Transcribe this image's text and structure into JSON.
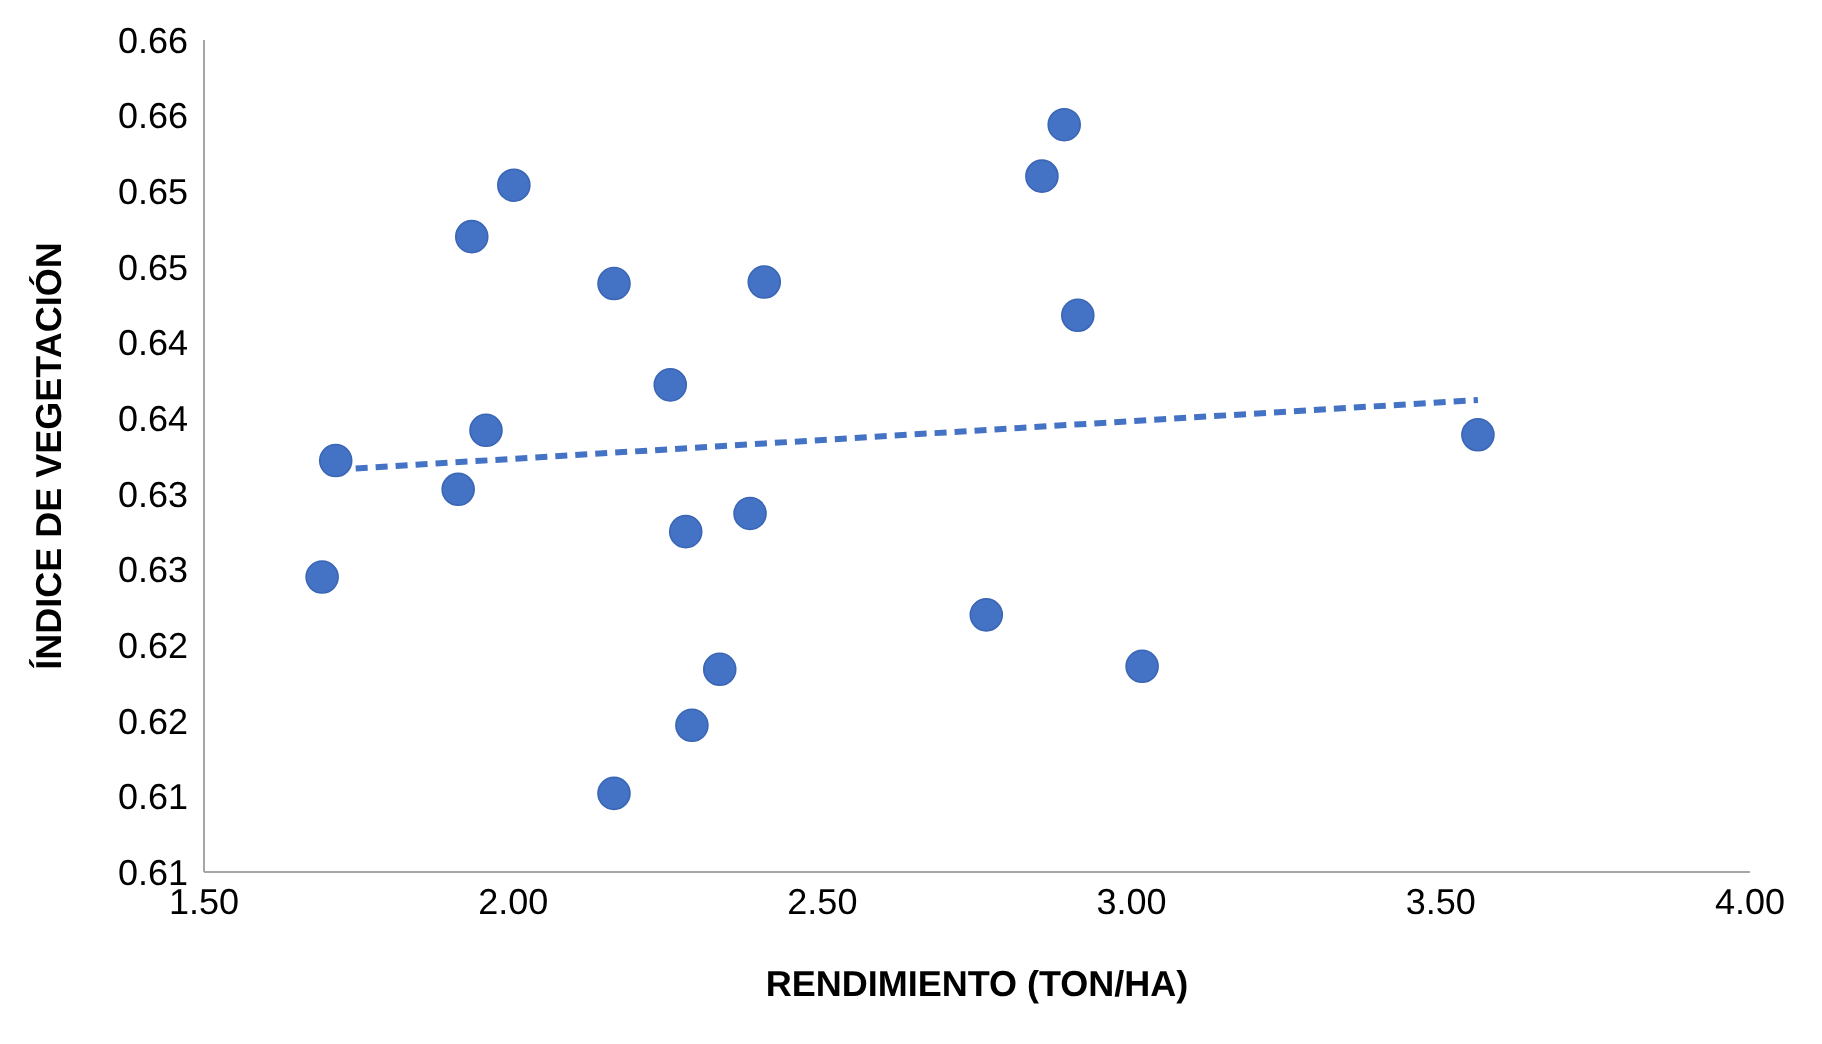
{
  "chart_data": {
    "type": "scatter",
    "xlabel": "RENDIMIENTO (TON/HA)",
    "ylabel": "ÍNDICE DE VEGETACIÓN",
    "x": [
      1.691,
      1.713,
      1.911,
      1.956,
      1.933,
      2.001,
      2.163,
      2.163,
      2.254,
      2.279,
      2.289,
      2.334,
      2.383,
      2.406,
      2.765,
      2.855,
      2.891,
      2.913,
      3.017,
      3.56
    ],
    "series": [
      {
        "type": "scatter",
        "color": "#4472c4",
        "marker": "circle",
        "values": [
          0.6245,
          0.6322,
          0.6303,
          0.6342,
          0.647,
          0.6504,
          0.6439,
          0.6102,
          0.6372,
          0.6275,
          0.6147,
          0.6184,
          0.6287,
          0.644,
          0.622,
          0.651,
          0.6544,
          0.6418,
          0.6186,
          0.6339
        ]
      },
      {
        "type": "line",
        "color": "#4472c4",
        "line_style": "dashed",
        "marker": "none",
        "x": [
          1.713,
          3.56
        ],
        "values": [
          0.6316,
          0.6362
        ]
      }
    ],
    "xlim": [
      1.5,
      4.0
    ],
    "xticks": [
      {
        "value": 1.5,
        "label": "1.50"
      },
      {
        "value": 2.0,
        "label": "2.00"
      },
      {
        "value": 2.5,
        "label": "2.50"
      },
      {
        "value": 3.0,
        "label": "3.00"
      },
      {
        "value": 3.5,
        "label": "3.50"
      },
      {
        "value": 4.0,
        "label": "4.00"
      }
    ],
    "ylim": [
      0.605,
      0.66
    ],
    "yticks": [
      {
        "value": 0.605,
        "label": "0.61"
      },
      {
        "value": 0.61,
        "label": "0.61"
      },
      {
        "value": 0.615,
        "label": "0.62"
      },
      {
        "value": 0.62,
        "label": "0.62"
      },
      {
        "value": 0.625,
        "label": "0.63"
      },
      {
        "value": 0.63,
        "label": "0.63"
      },
      {
        "value": 0.635,
        "label": "0.64"
      },
      {
        "value": 0.64,
        "label": "0.64"
      },
      {
        "value": 0.645,
        "label": "0.65"
      },
      {
        "value": 0.65,
        "label": "0.65"
      },
      {
        "value": 0.655,
        "label": "0.66"
      },
      {
        "value": 0.66,
        "label": "0.66"
      }
    ],
    "grid": false,
    "legend": false
  }
}
